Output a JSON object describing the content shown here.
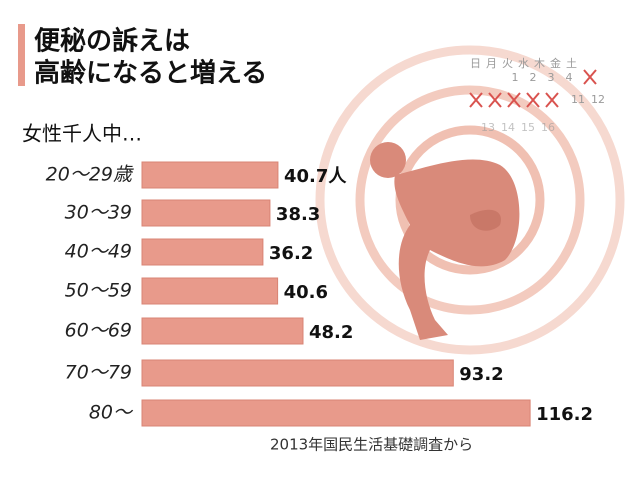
{
  "chart_data": {
    "type": "bar",
    "orientation": "horizontal",
    "title": [
      "便秘の訴えは",
      "高齢になると増える"
    ],
    "subtitle": "女性千人中…",
    "source": "2013年国民生活基礎調査から",
    "categories": [
      "20～29歳",
      "30～39",
      "40～49",
      "50～59",
      "60～69",
      "70～79",
      "80～"
    ],
    "values": [
      40.7,
      38.3,
      36.2,
      40.6,
      48.2,
      93.2,
      116.2
    ],
    "value_labels": [
      "40.7人",
      "38.3",
      "36.2",
      "40.6",
      "48.2",
      "93.2",
      "116.2"
    ],
    "color": "#e89a8b"
  },
  "illustration": {
    "calendar": {
      "weekdays": "日月火水木金土",
      "days": [
        "1",
        "2",
        "3",
        "4",
        "11",
        "12",
        "13",
        "14",
        "15",
        "16"
      ]
    }
  }
}
